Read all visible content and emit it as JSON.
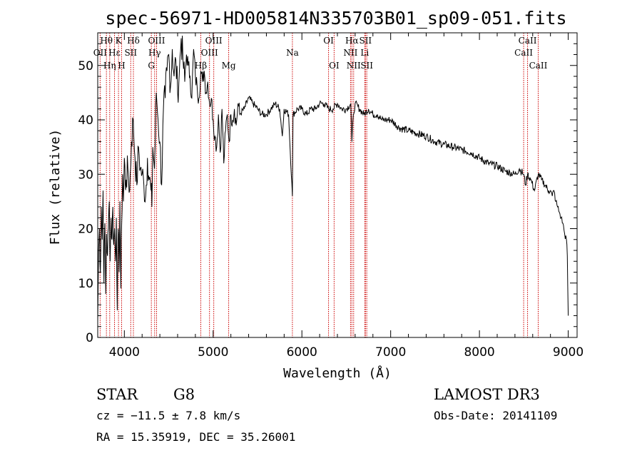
{
  "chart_data": {
    "type": "line",
    "title": "spec-56971-HD005814N335703B01_sp09-051.fits",
    "xlabel": "Wavelength (Å)",
    "ylabel": "Flux (relative)",
    "xlim": [
      3700,
      9100
    ],
    "ylim": [
      0,
      56
    ],
    "xticks": [
      4000,
      5000,
      6000,
      7000,
      8000,
      9000
    ],
    "yticks": [
      0,
      10,
      20,
      30,
      40,
      50
    ],
    "grid": false,
    "series": [
      {
        "name": "flux",
        "x": [
          3700,
          3710,
          3720,
          3730,
          3740,
          3750,
          3760,
          3770,
          3780,
          3790,
          3800,
          3810,
          3820,
          3830,
          3840,
          3850,
          3860,
          3870,
          3880,
          3890,
          3900,
          3910,
          3920,
          3930,
          3940,
          3950,
          3960,
          3970,
          3980,
          3990,
          4000,
          4010,
          4020,
          4040,
          4060,
          4080,
          4100,
          4120,
          4140,
          4160,
          4180,
          4200,
          4220,
          4240,
          4260,
          4280,
          4300,
          4310,
          4320,
          4340,
          4360,
          4380,
          4400,
          4420,
          4440,
          4460,
          4480,
          4500,
          4520,
          4540,
          4560,
          4580,
          4600,
          4620,
          4640,
          4660,
          4680,
          4700,
          4720,
          4740,
          4760,
          4780,
          4800,
          4820,
          4840,
          4860,
          4880,
          4900,
          4920,
          4940,
          4960,
          4980,
          5000,
          5020,
          5040,
          5060,
          5080,
          5100,
          5120,
          5140,
          5160,
          5180,
          5200,
          5220,
          5240,
          5260,
          5280,
          5300,
          5350,
          5400,
          5450,
          5500,
          5550,
          5600,
          5650,
          5700,
          5750,
          5780,
          5800,
          5850,
          5893,
          5900,
          5950,
          6000,
          6050,
          6100,
          6150,
          6200,
          6250,
          6300,
          6350,
          6400,
          6450,
          6500,
          6550,
          6563,
          6580,
          6600,
          6650,
          6700,
          6750,
          6800,
          6850,
          6900,
          6950,
          7000,
          7100,
          7200,
          7300,
          7400,
          7500,
          7600,
          7700,
          7800,
          7900,
          8000,
          8100,
          8200,
          8300,
          8400,
          8450,
          8498,
          8520,
          8542,
          8580,
          8620,
          8662,
          8700,
          8740,
          8780,
          8800,
          8820,
          8840,
          8860,
          8880,
          8900,
          8920,
          8940,
          8960,
          8980,
          8990,
          9000
        ],
        "values": [
          3,
          16,
          20,
          12,
          24,
          18,
          27,
          10,
          21,
          8,
          19,
          15,
          20,
          25,
          14,
          22,
          18,
          24,
          17,
          20,
          14,
          22,
          5,
          20,
          12,
          25,
          9,
          21,
          30,
          25,
          33,
          28,
          29,
          31,
          27,
          36,
          40,
          33,
          28,
          35,
          31,
          30,
          28,
          26,
          33,
          29,
          27,
          24,
          35,
          31,
          45,
          40,
          36,
          28,
          42,
          44,
          49,
          52,
          46,
          53,
          48,
          51,
          45,
          49,
          55,
          51,
          47,
          52,
          50,
          48,
          44,
          53,
          48,
          46,
          44,
          49,
          47,
          49,
          45,
          47,
          43,
          44,
          40,
          37,
          35,
          41,
          34,
          42,
          32,
          38,
          41,
          36,
          41,
          40,
          42,
          39,
          43,
          41,
          42,
          44,
          43,
          42,
          41,
          41,
          42,
          43,
          42,
          37,
          42,
          41,
          26,
          41,
          42,
          42,
          41,
          42,
          42,
          43,
          43,
          42,
          42,
          43,
          42,
          42,
          43,
          36,
          41,
          43,
          42,
          41,
          42,
          41,
          41,
          40,
          40,
          40,
          38.5,
          38,
          37.5,
          37,
          36,
          35.5,
          35,
          34.5,
          34,
          33,
          32,
          31.5,
          30.5,
          30,
          31,
          30,
          28,
          30,
          29,
          27,
          30,
          29,
          28,
          27,
          27,
          26,
          27,
          25,
          24,
          23,
          22,
          21,
          19,
          18,
          15,
          4
        ]
      }
    ],
    "spectral_lines": [
      {
        "name": "Hθ",
        "wavelength": 3798,
        "row": 1
      },
      {
        "name": "OII",
        "wavelength": 3727,
        "row": 2
      },
      {
        "name": "Hη",
        "wavelength": 3835,
        "row": 3
      },
      {
        "name": "Hε",
        "wavelength": 3889,
        "row": 2
      },
      {
        "name": "K",
        "wavelength": 3934,
        "row": 1
      },
      {
        "name": "H",
        "wavelength": 3969,
        "row": 3
      },
      {
        "name": "Hδ",
        "wavelength": 4102,
        "row": 1
      },
      {
        "name": "SII",
        "wavelength": 4072,
        "row": 2
      },
      {
        "name": "OIII",
        "wavelength": 4363,
        "row": 1
      },
      {
        "name": "Hγ",
        "wavelength": 4341,
        "row": 2
      },
      {
        "name": "G",
        "wavelength": 4304,
        "row": 3
      },
      {
        "name": "Hβ",
        "wavelength": 4861,
        "row": 3
      },
      {
        "name": "OIII",
        "wavelength": 5007,
        "row": 1
      },
      {
        "name": "OIII",
        "wavelength": 4959,
        "row": 2
      },
      {
        "name": "Mg",
        "wavelength": 5175,
        "row": 3
      },
      {
        "name": "Na",
        "wavelength": 5893,
        "row": 2
      },
      {
        "name": "OI",
        "wavelength": 6300,
        "row": 1
      },
      {
        "name": "OI",
        "wavelength": 6363,
        "row": 3
      },
      {
        "name": "Hα",
        "wavelength": 6563,
        "row": 1
      },
      {
        "name": "NII",
        "wavelength": 6548,
        "row": 2
      },
      {
        "name": "NII",
        "wavelength": 6583,
        "row": 3
      },
      {
        "name": "SII",
        "wavelength": 6716,
        "row": 1
      },
      {
        "name": "Li",
        "wavelength": 6708,
        "row": 2
      },
      {
        "name": "SII",
        "wavelength": 6731,
        "row": 3
      },
      {
        "name": "CaII",
        "wavelength": 8542,
        "row": 1
      },
      {
        "name": "CaII",
        "wavelength": 8498,
        "row": 2
      },
      {
        "name": "CaII",
        "wavelength": 8662,
        "row": 3
      }
    ]
  },
  "info": {
    "object_class": "STAR",
    "subclass": "G8",
    "survey": "LAMOST DR3",
    "cz": "cz = −11.5 ± 7.8 km/s",
    "obs_date": "Obs-Date: 20141109",
    "coords": "RA =  15.35919, DEC =  35.26001"
  },
  "colors": {
    "line_marker": "#cc0000",
    "spectrum": "#000000"
  }
}
